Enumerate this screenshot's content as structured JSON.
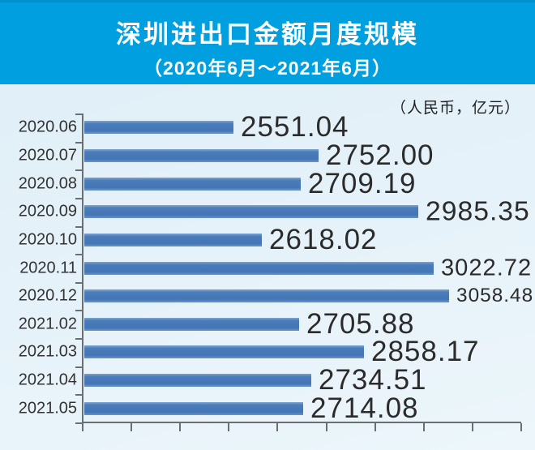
{
  "header": {
    "title": "深圳进出口金额月度规模",
    "subtitle": "（2020年6月～2021年6月）"
  },
  "unit_note": "（人民币，亿元）",
  "chart_data": {
    "type": "bar",
    "orientation": "horizontal",
    "title": "深圳进出口金额月度规模",
    "subtitle": "（2020年6月～2021年6月）",
    "unit": "人民币，亿元",
    "categories": [
      "2020.06",
      "2020.07",
      "2020.08",
      "2020.09",
      "2020.10",
      "2020.11",
      "2020.12",
      "2021.02",
      "2021.03",
      "2021.04",
      "2021.05"
    ],
    "values": [
      2551.04,
      2752.0,
      2709.19,
      2985.35,
      2618.02,
      3022.72,
      3058.48,
      2705.88,
      2858.17,
      2734.51,
      2714.08
    ],
    "value_labels": [
      "2551.04",
      "2752.00",
      "2709.19",
      "2985.35",
      "2618.02",
      "3022.72",
      "3058.48",
      "2705.88",
      "2858.17",
      "2734.51",
      "2714.08"
    ],
    "axis_min": 2200,
    "axis_max": 3230,
    "x_tick_count": 10,
    "grid": false,
    "legend": false,
    "value_labels_shown": true,
    "x_tick_labels_shown": false,
    "bar_color": "#4a7cba",
    "header_color": "#00a0e0",
    "background_color": "#e6f2f9",
    "text_color": "#2b2b2b"
  }
}
